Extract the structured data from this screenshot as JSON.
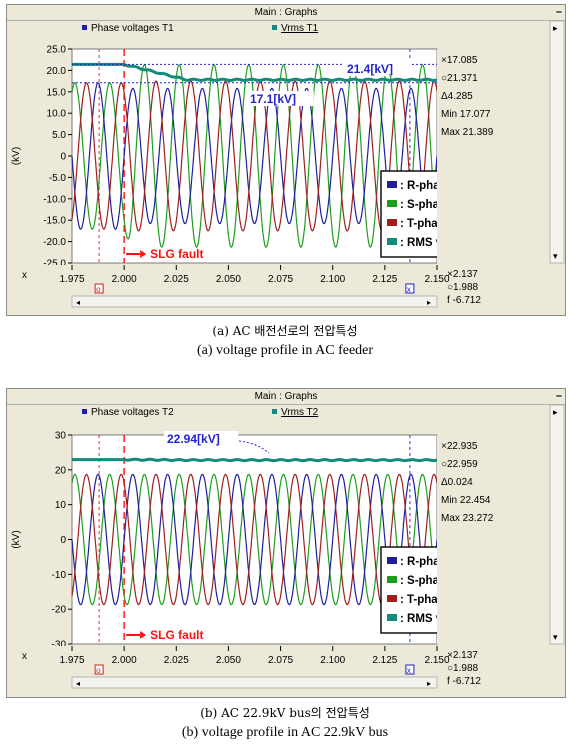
{
  "window_title": "Main : Graphs",
  "x_label": "x",
  "y_label": "(kV)",
  "legend": {
    "r": ": R-phase voltage",
    "s": ": S-phase voltage",
    "t": ": T-phase voltage",
    "rms": ": RMS voltage(L-L)"
  },
  "colors": {
    "r": "#1f1f9e",
    "s": "#1e9e1e",
    "t": "#a01e1e",
    "rms": "#138a7a",
    "annot": "#2323d0",
    "fault": "#ff1010"
  },
  "fault_label": "SLG fault",
  "x_readout": {
    "x": "×2.137",
    "o": "○1.988",
    "f": "f  -6.712"
  },
  "captions": {
    "a_kr": "(a) AC 배전선로의 전압특성",
    "a_en": "(a) voltage profile in AC feeder",
    "b_kr": "(b) AC 22.9kV bus의 전압특성",
    "b_en": "(b) voltage profile in AC 22.9kV bus"
  },
  "chart_data": [
    {
      "type": "line",
      "tabs": [
        "Phase voltages T1",
        "Vrms T1"
      ],
      "x_ticks": [
        "1.975",
        "2.000",
        "2.025",
        "2.050",
        "2.075",
        "2.100",
        "2.125",
        "2.150"
      ],
      "xlim": [
        1.975,
        2.15
      ],
      "y_ticks": [
        "25.0",
        "20.0",
        "15.0",
        "10.0",
        "5.0",
        "0",
        "-5.0",
        "-10.0",
        "-15.0",
        "-20.0",
        "-25.0"
      ],
      "ylim": [
        -25,
        25
      ],
      "fault_time": 2.0,
      "cursor_x": [
        1.988,
        2.137
      ],
      "annotations": [
        "21.4[kV]",
        "17.1[kV]"
      ],
      "annotation_y": [
        21.4,
        17.1
      ],
      "frequency_hz": 60,
      "phase_amplitude": {
        "pre_fault": 17.1,
        "post_fault": [
          15.8,
          21.3,
          17.5
        ]
      },
      "rms": {
        "pre_fault": 21.4,
        "post_fault": 17.8
      },
      "readout": {
        "x": "×17.085",
        "o": "○21.371",
        "d": "Δ4.285",
        "min": "Min 17.077",
        "max": "Max 21.389"
      },
      "series": [
        {
          "name": "R-phase voltage",
          "color": "#1f1f9e"
        },
        {
          "name": "S-phase voltage",
          "color": "#1e9e1e"
        },
        {
          "name": "T-phase voltage",
          "color": "#a01e1e"
        },
        {
          "name": "RMS voltage(L-L)",
          "color": "#138a7a"
        }
      ]
    },
    {
      "type": "line",
      "tabs": [
        "Phase voltages T2",
        "Vrms T2"
      ],
      "x_ticks": [
        "1.975",
        "2.000",
        "2.025",
        "2.050",
        "2.075",
        "2.100",
        "2.125",
        "2.150"
      ],
      "xlim": [
        1.975,
        2.15
      ],
      "y_ticks": [
        "30",
        "20",
        "10",
        "0",
        "-10",
        "-20",
        "-30"
      ],
      "ylim": [
        -30,
        30
      ],
      "fault_time": 2.0,
      "cursor_x": [
        1.988,
        2.137
      ],
      "annotations": [
        "22.94[kV]"
      ],
      "annotation_y": [
        22.94
      ],
      "frequency_hz": 60,
      "phase_amplitude": {
        "pre_fault": 18.7,
        "post_fault": [
          18.7,
          18.7,
          18.7
        ]
      },
      "rms": {
        "pre_fault": 22.94,
        "post_fault": 22.8
      },
      "readout": {
        "x": "×22.935",
        "o": "○22.959",
        "d": "Δ0.024",
        "min": "Min 22.454",
        "max": "Max 23.272"
      },
      "series": [
        {
          "name": "R-phase voltage",
          "color": "#1f1f9e"
        },
        {
          "name": "S-phase voltage",
          "color": "#1e9e1e"
        },
        {
          "name": "T-phase voltage",
          "color": "#a01e1e"
        },
        {
          "name": "RMS voltage(L-L)",
          "color": "#138a7a"
        }
      ]
    }
  ]
}
